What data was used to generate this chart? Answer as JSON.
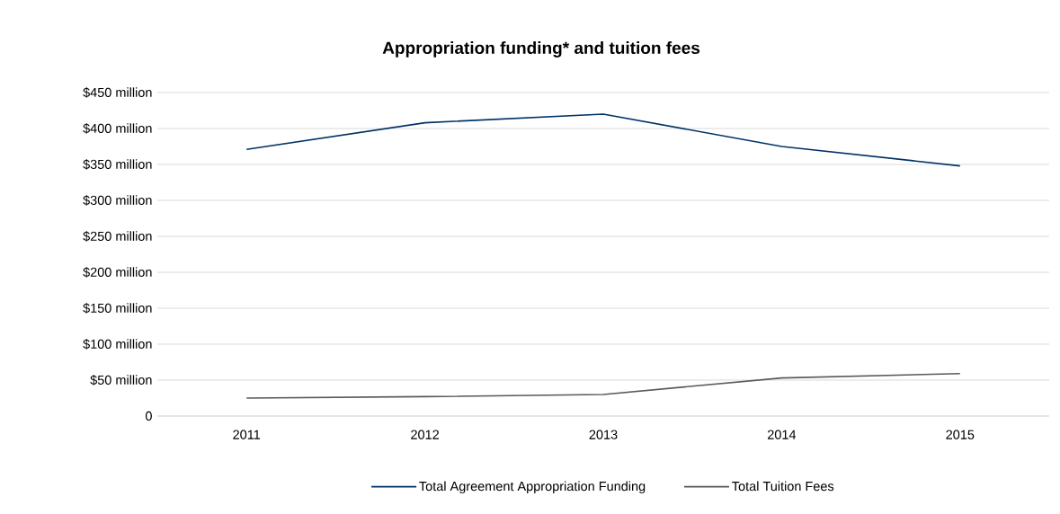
{
  "chart_data": {
    "type": "line",
    "title": "Appropriation funding* and tuition fees",
    "categories": [
      "2011",
      "2012",
      "2013",
      "2014",
      "2015"
    ],
    "series": [
      {
        "name": "Total Agreement Appropriation Funding",
        "color": "#003366",
        "values": [
          371,
          408,
          420,
          375,
          348
        ]
      },
      {
        "name": "Total Tuition Fees",
        "color": "#595959",
        "values": [
          25,
          27,
          30,
          53,
          59
        ]
      }
    ],
    "ylim": [
      0,
      450
    ],
    "yticks": [
      {
        "value": 0,
        "label": "0"
      },
      {
        "value": 50,
        "label": "$50 million"
      },
      {
        "value": 100,
        "label": "$100 million"
      },
      {
        "value": 150,
        "label": "$150 million"
      },
      {
        "value": 200,
        "label": "$200 million"
      },
      {
        "value": 250,
        "label": "$250 million"
      },
      {
        "value": 300,
        "label": "$300 million"
      },
      {
        "value": 350,
        "label": "$350 million"
      },
      {
        "value": 400,
        "label": "$400 million"
      },
      {
        "value": 450,
        "label": "$450 million"
      }
    ],
    "grid": "y",
    "legend": "bottom",
    "marker": "none",
    "line_style": "solid"
  }
}
